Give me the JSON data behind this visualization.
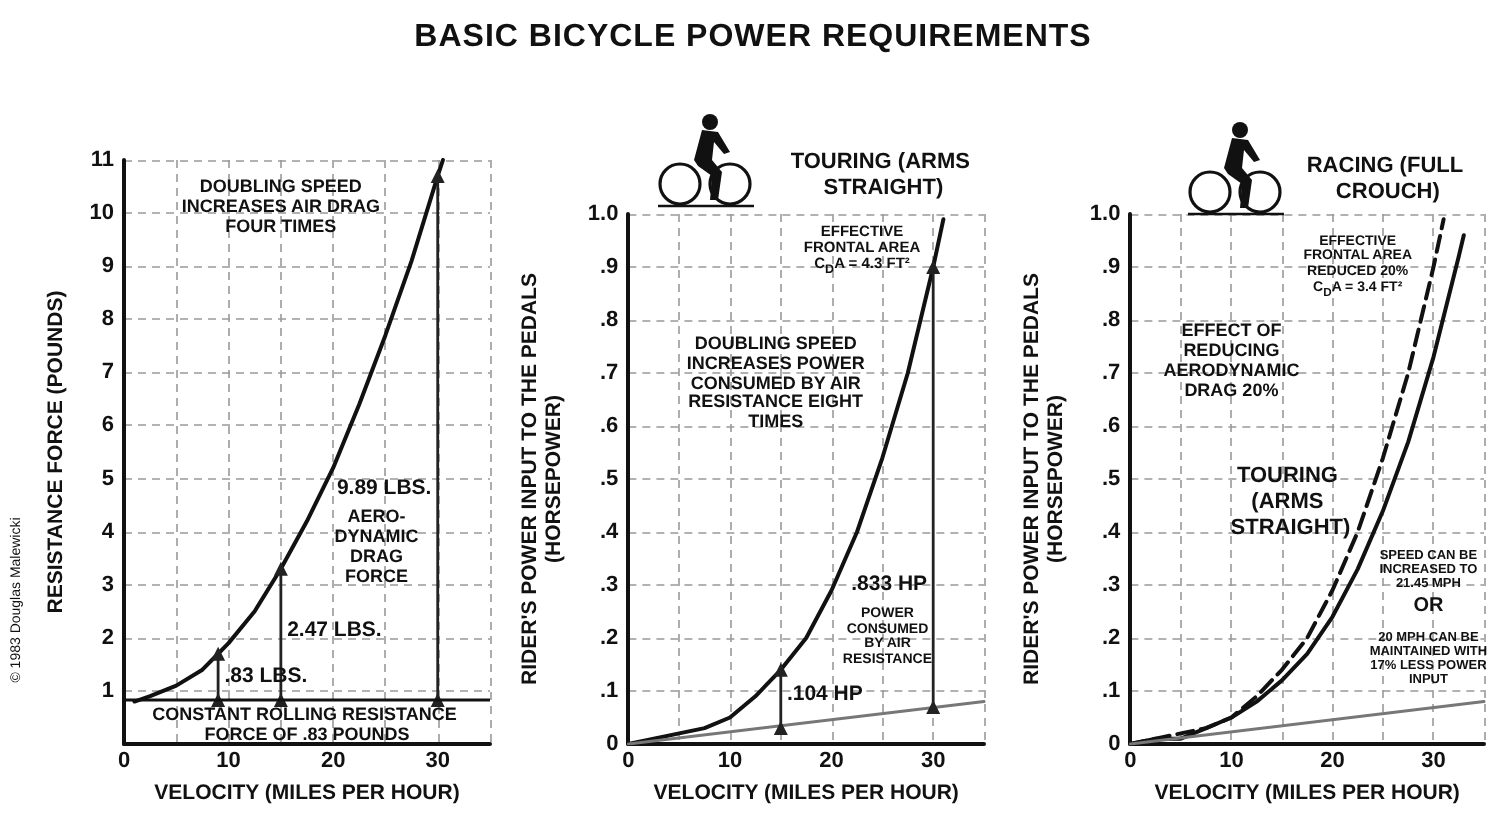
{
  "chart_data": [
    {
      "type": "line",
      "title": "BASIC BICYCLE POWER REQUIREMENTS",
      "xlabel": "VELOCITY (MILES PER HOUR)",
      "ylabel": "RESISTANCE FORCE (POUNDS)",
      "xlim": [
        0,
        35
      ],
      "xticks": [
        0,
        {
          "value": 5,
          "label": null
        },
        10,
        {
          "value": 15,
          "label": null
        },
        20,
        {
          "value": 25,
          "label": null
        },
        30,
        {
          "value": 35,
          "label": null
        }
      ],
      "ylim": [
        0,
        11
      ],
      "yticks": [
        1,
        2,
        3,
        4,
        5,
        6,
        7,
        8,
        9,
        10,
        11
      ],
      "grid": true,
      "series": [
        {
          "color": "#111111",
          "x": [
            1,
            2.5,
            5,
            7.5,
            9,
            10,
            12.5,
            15,
            17.5,
            20,
            22.5,
            25,
            27.5,
            30,
            30.5
          ],
          "values": [
            0.8,
            0.9,
            1.1,
            1.4,
            1.7,
            1.9,
            2.5,
            3.3,
            4.2,
            5.2,
            6.4,
            7.7,
            9.1,
            10.7,
            11
          ]
        },
        {
          "color": "#222222",
          "marker": "triangle",
          "x": [
            9,
            9
          ],
          "values": [
            0.83,
            1.7
          ]
        },
        {
          "color": "#222222",
          "marker": "triangle",
          "x": [
            15,
            15
          ],
          "values": [
            0.83,
            3.3
          ]
        },
        {
          "color": "#222222",
          "marker": "triangle",
          "x": [
            30,
            30
          ],
          "values": [
            0.83,
            10.7
          ]
        }
      ],
      "ref_lines": [
        {
          "axis": "y",
          "value": 0.83,
          "label": "CONSTANT ROLLING RESISTANCE FORCE OF .83 POUNDS",
          "color": "#111111"
        }
      ],
      "annotations": [
        "DOUBLING SPEED INCREASES AIR DRAG FOUR TIMES",
        {
          "text": "AERO-DYNAMIC DRAG FORCE",
          "x": 18.5,
          "y": 4.6
        },
        ".83 LBS.",
        "2.47 LBS.",
        "9.89 LBS.",
        "© 1983 Douglas Malewicki"
      ]
    },
    {
      "type": "line",
      "xlabel": "VELOCITY (MILES PER HOUR)",
      "ylabel": "RIDER'S POWER INPUT TO THE PEDALS (HORSEPOWER)",
      "xlim": [
        0,
        35
      ],
      "xticks": [
        0,
        {
          "value": 5,
          "label": null
        },
        10,
        {
          "value": 15,
          "label": null
        },
        20,
        {
          "value": 25,
          "label": null
        },
        30,
        {
          "value": 35,
          "label": null
        }
      ],
      "ylim": [
        0,
        1
      ],
      "yticks": [
        0,
        {
          "value": 0.1,
          "label": ".1"
        },
        {
          "value": 0.2,
          "label": ".2"
        },
        {
          "value": 0.3,
          "label": ".3"
        },
        {
          "value": 0.4,
          "label": ".4"
        },
        {
          "value": 0.5,
          "label": ".5"
        },
        {
          "value": 0.6,
          "label": ".6"
        },
        {
          "value": 0.7,
          "label": ".7"
        },
        {
          "value": 0.8,
          "label": ".8"
        },
        {
          "value": 0.9,
          "label": ".9"
        },
        {
          "value": 1,
          "label": "1.0"
        }
      ],
      "grid": true,
      "series": [
        {
          "name": "TOURING (ARMS STRAIGHT)",
          "color": "#111111",
          "x": [
            0,
            2.5,
            5,
            7.5,
            10,
            12.5,
            15,
            17.5,
            20,
            22.5,
            25,
            27.5,
            30,
            31
          ],
          "values": [
            0,
            0.01,
            0.02,
            0.03,
            0.05,
            0.09,
            0.14,
            0.2,
            0.29,
            0.4,
            0.54,
            0.7,
            0.9,
            0.99
          ]
        },
        {
          "color": "#777777",
          "x": [
            0,
            35
          ],
          "values": [
            0,
            0.08
          ]
        },
        {
          "color": "#222222",
          "marker": "triangle",
          "x": [
            15,
            15
          ],
          "values": [
            0.03,
            0.14
          ]
        },
        {
          "color": "#222222",
          "marker": "triangle",
          "x": [
            30,
            30
          ],
          "values": [
            0.07,
            0.9
          ]
        }
      ],
      "annotations": [
        "EFFECTIVE FRONTAL AREA C$_{D}$A = 4.3 FT²",
        "DOUBLING SPEED INCREASES POWER CONSUMED BY AIR RESISTANCE EIGHT TIMES",
        "POWER CONSUMED BY AIR RESISTANCE",
        ".104 HP",
        ".833 HP"
      ]
    },
    {
      "type": "line",
      "xlabel": "VELOCITY (MILES PER HOUR)",
      "ylabel": "RIDER'S POWER INPUT TO THE PEDALS (HORSEPOWER)",
      "xlim": [
        0,
        35
      ],
      "xticks": [
        0,
        {
          "value": 5,
          "label": null
        },
        10,
        {
          "value": 15,
          "label": null
        },
        20,
        {
          "value": 25,
          "label": null
        },
        30,
        {
          "value": 35,
          "label": null
        }
      ],
      "ylim": [
        0,
        1
      ],
      "yticks": [
        0,
        {
          "value": 0.1,
          "label": ".1"
        },
        {
          "value": 0.2,
          "label": ".2"
        },
        {
          "value": 0.3,
          "label": ".3"
        },
        {
          "value": 0.4,
          "label": ".4"
        },
        {
          "value": 0.5,
          "label": ".5"
        },
        {
          "value": 0.6,
          "label": ".6"
        },
        {
          "value": 0.7,
          "label": ".7"
        },
        {
          "value": 0.8,
          "label": ".8"
        },
        {
          "value": 0.9,
          "label": ".9"
        },
        {
          "value": 1,
          "label": "1.0"
        }
      ],
      "grid": true,
      "series": [
        {
          "name": "TOURING (ARMS STRAIGHT)",
          "color": "#111111",
          "line_style": "dashed",
          "x": [
            0,
            2.5,
            5,
            7.5,
            10,
            12.5,
            15,
            17.5,
            20,
            22.5,
            25,
            27.5,
            30,
            31
          ],
          "values": [
            0,
            0.01,
            0.02,
            0.03,
            0.05,
            0.09,
            0.14,
            0.2,
            0.29,
            0.4,
            0.54,
            0.7,
            0.9,
            0.99
          ]
        },
        {
          "name": "RACING (FULL CROUCH)",
          "color": "#111111",
          "x": [
            0,
            2.5,
            5,
            7.5,
            10,
            12.5,
            15,
            17.5,
            20,
            22.5,
            25,
            27.5,
            30,
            32.5,
            33
          ],
          "values": [
            0,
            0.01,
            0.01,
            0.03,
            0.05,
            0.08,
            0.12,
            0.17,
            0.24,
            0.33,
            0.44,
            0.57,
            0.73,
            0.92,
            0.96
          ]
        },
        {
          "color": "#777777",
          "x": [
            0,
            35
          ],
          "values": [
            0,
            0.08
          ]
        }
      ],
      "annotations": [
        "EFFECTIVE FRONTAL AREA REDUCED 20% C$_{D}$A = 3.4 FT²",
        "EFFECT OF REDUCING AERODYNAMIC DRAG 20%",
        "SPEED CAN BE INCREASED TO 21.45 MPH",
        "OR",
        "20 MPH CAN BE MAINTAINED WITH 17% LESS POWER INPUT"
      ]
    }
  ]
}
